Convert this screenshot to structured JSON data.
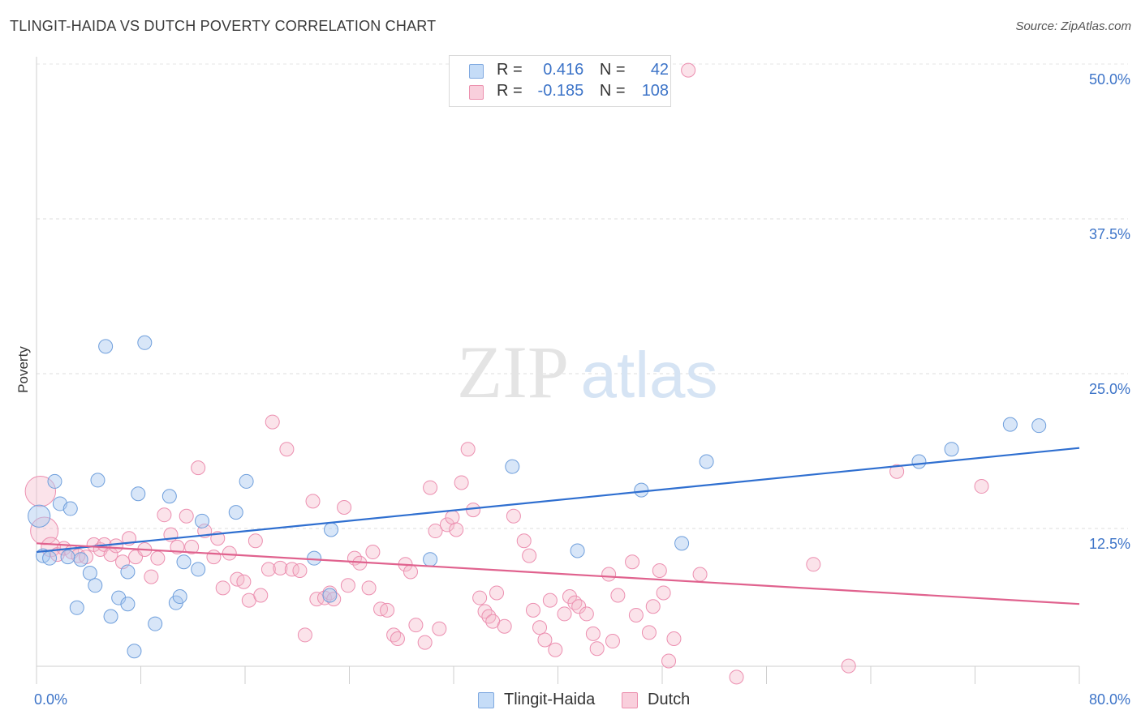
{
  "header": {
    "title": "TLINGIT-HAIDA VS DUTCH POVERTY CORRELATION CHART",
    "source": "Source: ZipAtlas.com"
  },
  "watermark": {
    "part1": "ZIP",
    "part2": "atlas"
  },
  "legend": {
    "rows": [
      {
        "r_label": "R =",
        "r_value": "0.416",
        "n_label": "N =",
        "n_value": "42",
        "color": "#a8c8f0"
      },
      {
        "r_label": "R =",
        "r_value": "-0.185",
        "n_label": "N =",
        "n_value": "108",
        "color": "#f5b8cb"
      }
    ]
  },
  "chart_data": {
    "type": "scatter",
    "title": "TLINGIT-HAIDA VS DUTCH POVERTY CORRELATION CHART",
    "xlabel": "",
    "ylabel": "Poverty",
    "xlim": [
      0,
      80
    ],
    "ylim": [
      0,
      52
    ],
    "x_tick_labels": [
      "0.0%",
      "80.0%"
    ],
    "y_ticks": [
      12.5,
      25.0,
      37.5,
      50.0
    ],
    "y_tick_labels": [
      "12.5%",
      "25.0%",
      "37.5%",
      "50.0%"
    ],
    "grid": "horizontal dashed",
    "legend_position": "top-center",
    "series": [
      {
        "name": "Tlingit-Haida",
        "color": "#a8c8f0",
        "line_color": "#2f6fd0",
        "trend": {
          "x": [
            0,
            80
          ],
          "y": [
            10.6,
            19.0
          ]
        },
        "points": [
          [
            0.2,
            13.5,
            1.6
          ],
          [
            0.5,
            10.3,
            1
          ],
          [
            1.0,
            10.1,
            1
          ],
          [
            1.4,
            16.3,
            1
          ],
          [
            1.8,
            14.5,
            1
          ],
          [
            2.4,
            10.2,
            1
          ],
          [
            2.6,
            14.1,
            1
          ],
          [
            3.1,
            6.1,
            1
          ],
          [
            3.4,
            10.0,
            1
          ],
          [
            4.1,
            8.9,
            1
          ],
          [
            4.5,
            7.9,
            1
          ],
          [
            4.7,
            16.4,
            1
          ],
          [
            5.3,
            27.2,
            1
          ],
          [
            5.7,
            5.4,
            1
          ],
          [
            6.3,
            6.9,
            1
          ],
          [
            7.0,
            9.0,
            1
          ],
          [
            7.0,
            6.4,
            1
          ],
          [
            7.5,
            2.6,
            1
          ],
          [
            7.8,
            15.3,
            1
          ],
          [
            8.3,
            27.5,
            1
          ],
          [
            9.1,
            4.8,
            1
          ],
          [
            10.2,
            15.1,
            1
          ],
          [
            10.7,
            6.5,
            1
          ],
          [
            11.0,
            7.0,
            1
          ],
          [
            11.3,
            9.8,
            1
          ],
          [
            12.4,
            9.2,
            1
          ],
          [
            12.7,
            13.1,
            1
          ],
          [
            15.3,
            13.8,
            1
          ],
          [
            16.1,
            16.3,
            1
          ],
          [
            21.3,
            10.1,
            1
          ],
          [
            22.5,
            7.1,
            1
          ],
          [
            22.6,
            12.4,
            1
          ],
          [
            30.2,
            10.0,
            1
          ],
          [
            36.5,
            17.5,
            1
          ],
          [
            41.5,
            10.7,
            1
          ],
          [
            46.4,
            15.6,
            1
          ],
          [
            49.5,
            11.3,
            1
          ],
          [
            51.4,
            17.9,
            1
          ],
          [
            67.7,
            17.9,
            1
          ],
          [
            70.2,
            18.9,
            1
          ],
          [
            74.7,
            20.9,
            1
          ],
          [
            76.9,
            20.8,
            1
          ]
        ]
      },
      {
        "name": "Dutch",
        "color": "#f5b8cb",
        "line_color": "#e0628e",
        "trend": {
          "x": [
            0,
            80
          ],
          "y": [
            11.3,
            6.4
          ]
        },
        "points": [
          [
            0.3,
            15.5,
            2.2
          ],
          [
            0.6,
            12.3,
            2.0
          ],
          [
            1.1,
            11.0,
            1.4
          ],
          [
            1.6,
            10.4,
            1
          ],
          [
            2.1,
            10.9,
            1
          ],
          [
            2.7,
            10.6,
            1
          ],
          [
            3.2,
            10.3,
            1
          ],
          [
            3.8,
            10.2,
            1
          ],
          [
            4.4,
            11.2,
            1
          ],
          [
            4.9,
            10.8,
            1
          ],
          [
            5.2,
            11.2,
            1
          ],
          [
            5.7,
            10.4,
            1
          ],
          [
            6.1,
            11.1,
            1
          ],
          [
            6.6,
            9.8,
            1
          ],
          [
            7.1,
            11.7,
            1
          ],
          [
            7.6,
            10.2,
            1
          ],
          [
            8.3,
            10.8,
            1
          ],
          [
            8.8,
            8.6,
            1
          ],
          [
            9.3,
            10.1,
            1
          ],
          [
            9.8,
            13.6,
            1
          ],
          [
            10.3,
            12.0,
            1
          ],
          [
            10.8,
            11.0,
            1
          ],
          [
            11.5,
            13.5,
            1
          ],
          [
            11.9,
            11.0,
            1
          ],
          [
            12.4,
            17.4,
            1
          ],
          [
            12.9,
            12.3,
            1
          ],
          [
            13.6,
            10.2,
            1
          ],
          [
            13.9,
            11.7,
            1
          ],
          [
            14.3,
            7.7,
            1
          ],
          [
            14.8,
            10.5,
            1
          ],
          [
            15.4,
            8.4,
            1
          ],
          [
            15.9,
            8.2,
            1
          ],
          [
            16.3,
            6.7,
            1
          ],
          [
            16.8,
            11.5,
            1
          ],
          [
            17.2,
            7.1,
            1
          ],
          [
            17.8,
            9.2,
            1
          ],
          [
            18.1,
            21.1,
            1
          ],
          [
            18.7,
            9.3,
            1
          ],
          [
            19.2,
            18.9,
            1
          ],
          [
            19.6,
            9.2,
            1
          ],
          [
            20.2,
            9.1,
            1
          ],
          [
            20.6,
            3.9,
            1
          ],
          [
            21.2,
            14.7,
            1
          ],
          [
            21.5,
            6.8,
            1
          ],
          [
            22.1,
            6.9,
            1
          ],
          [
            22.5,
            7.3,
            1
          ],
          [
            22.8,
            6.8,
            1
          ],
          [
            23.6,
            14.2,
            1
          ],
          [
            23.9,
            7.9,
            1
          ],
          [
            24.4,
            10.1,
            1
          ],
          [
            24.8,
            9.7,
            1
          ],
          [
            25.5,
            7.7,
            1
          ],
          [
            25.8,
            10.6,
            1
          ],
          [
            26.4,
            6.0,
            1
          ],
          [
            26.9,
            5.9,
            1
          ],
          [
            27.4,
            3.9,
            1
          ],
          [
            27.7,
            3.6,
            1
          ],
          [
            28.3,
            9.6,
            1
          ],
          [
            28.7,
            9.0,
            1
          ],
          [
            29.1,
            4.7,
            1
          ],
          [
            29.8,
            3.3,
            1
          ],
          [
            30.2,
            15.8,
            1
          ],
          [
            30.6,
            12.3,
            1
          ],
          [
            30.9,
            4.4,
            1
          ],
          [
            31.5,
            12.8,
            1
          ],
          [
            31.9,
            13.4,
            1
          ],
          [
            32.2,
            12.4,
            1
          ],
          [
            32.6,
            16.2,
            1
          ],
          [
            33.1,
            18.9,
            1
          ],
          [
            33.5,
            14.0,
            1
          ],
          [
            34.0,
            6.9,
            1
          ],
          [
            34.4,
            5.8,
            1
          ],
          [
            34.7,
            5.4,
            1
          ],
          [
            35.0,
            5.0,
            1
          ],
          [
            35.3,
            7.3,
            1
          ],
          [
            35.9,
            4.6,
            1
          ],
          [
            36.6,
            13.5,
            1
          ],
          [
            37.4,
            11.5,
            1
          ],
          [
            37.8,
            10.3,
            1
          ],
          [
            38.1,
            5.9,
            1
          ],
          [
            38.6,
            4.5,
            1
          ],
          [
            39.0,
            3.5,
            1
          ],
          [
            39.4,
            6.7,
            1
          ],
          [
            39.8,
            2.7,
            1
          ],
          [
            40.5,
            5.6,
            1
          ],
          [
            40.9,
            7.0,
            1
          ],
          [
            41.3,
            6.5,
            1
          ],
          [
            41.6,
            6.2,
            1
          ],
          [
            42.2,
            5.6,
            1
          ],
          [
            42.7,
            4.0,
            1
          ],
          [
            43.0,
            2.8,
            1
          ],
          [
            43.9,
            8.8,
            1
          ],
          [
            44.2,
            3.4,
            1
          ],
          [
            44.6,
            7.1,
            1
          ],
          [
            45.7,
            9.8,
            1
          ],
          [
            46.0,
            5.5,
            1
          ],
          [
            47.0,
            4.1,
            1
          ],
          [
            47.3,
            6.2,
            1
          ],
          [
            47.8,
            9.1,
            1
          ],
          [
            48.1,
            7.3,
            1
          ],
          [
            48.5,
            1.8,
            1
          ],
          [
            48.9,
            3.6,
            1
          ],
          [
            50.9,
            8.8,
            1
          ],
          [
            53.7,
            0.5,
            1
          ],
          [
            59.6,
            9.6,
            1
          ],
          [
            62.3,
            1.4,
            1
          ],
          [
            66.0,
            17.1,
            1
          ],
          [
            72.5,
            15.9,
            1
          ],
          [
            50.0,
            49.5,
            1
          ]
        ]
      }
    ]
  },
  "bottom_legend": {
    "items": [
      {
        "label": "Tlingit-Haida",
        "color": "#a8c8f0"
      },
      {
        "label": "Dutch",
        "color": "#f5b8cb"
      }
    ]
  }
}
